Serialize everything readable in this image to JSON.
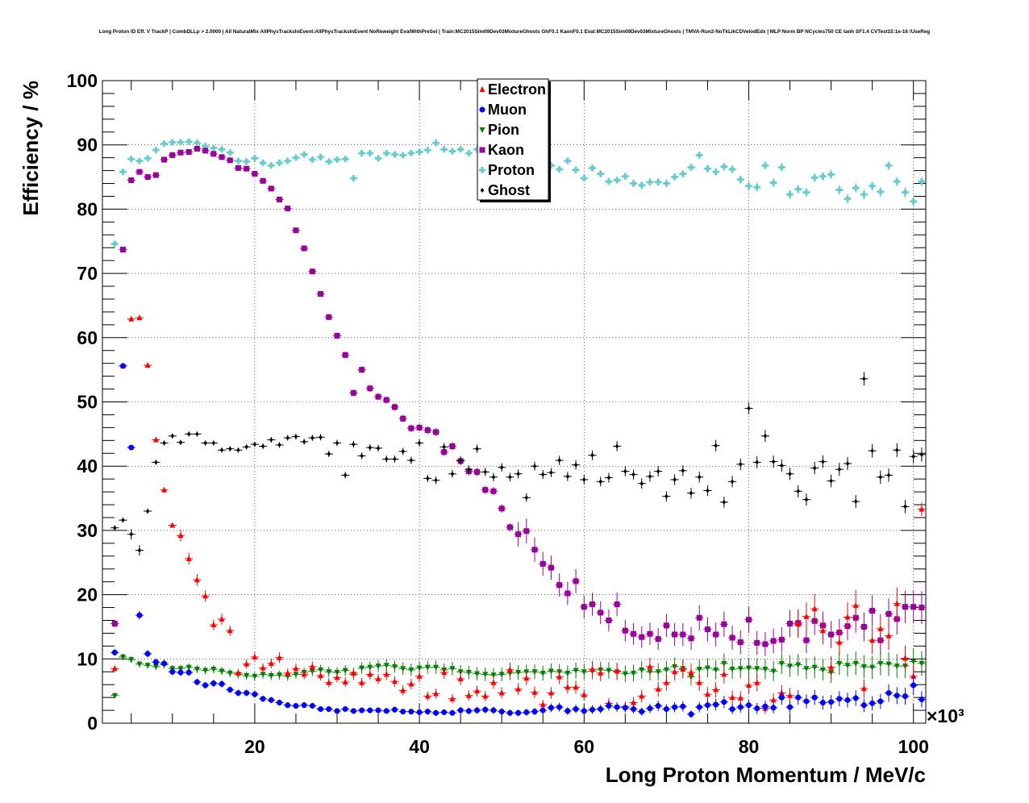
{
  "title": "Long Proton ID Eff. V TrackP | CombDLLp > 2.0000 | All NaturalMix AllPhysTracksInEvent:AllPhysTracksInEvent NoReweight EvalWithPreSel | Train:MC2015Sim09Dev03MixtureGhosts GhF0.1 KaonF0.1 Eval:MC2015Sim09Dev03MixtureGhosts | TMVA-Run2-NoTkLikCDVelodEdx | MLP Norm BP NCycles750 CE tanh SF1.4 CVTest15:1e-16 !UseReg",
  "chart_data": {
    "type": "scatter",
    "title": "Long Proton ID Eff. V TrackP | CombDLLp > 2.0000 | All NaturalMix AllPhysTracksInEvent:AllPhysTracksInEvent NoReweight EvalWithPreSel | Train:MC2015Sim09Dev03MixtureGhosts GhF0.1 KaonF0.1 Eval:MC2015Sim09Dev03MixtureGhosts | TMVA-Run2-NoTkLikCDVelodEdx | MLP Norm BP NCycles750 CE tanh SF1.4 CVTest15:1e-16 !UseReg",
    "xlabel": "Long Proton Momentum / MeV/c",
    "ylabel": "Efficiency / %",
    "x_multiplier": "×10³",
    "xlim": [
      1.5,
      101.5
    ],
    "ylim": [
      0,
      100
    ],
    "x_ticks": [
      20,
      40,
      60,
      80,
      100
    ],
    "y_ticks": [
      0,
      10,
      20,
      30,
      40,
      50,
      60,
      70,
      80,
      90,
      100
    ],
    "grid": true,
    "legend_position": "top-center",
    "x": [
      3,
      4,
      5,
      6,
      7,
      8,
      9,
      10,
      11,
      12,
      13,
      14,
      15,
      16,
      17,
      18,
      19,
      20,
      21,
      22,
      23,
      24,
      25,
      26,
      27,
      28,
      29,
      30,
      31,
      32,
      33,
      34,
      35,
      36,
      37,
      38,
      39,
      40,
      41,
      42,
      43,
      44,
      45,
      46,
      47,
      48,
      49,
      50,
      51,
      52,
      53,
      54,
      55,
      56,
      57,
      58,
      59,
      60,
      61,
      62,
      63,
      64,
      65,
      66,
      67,
      68,
      69,
      70,
      71,
      72,
      73,
      74,
      75,
      76,
      77,
      78,
      79,
      80,
      81,
      82,
      83,
      84,
      85,
      86,
      87,
      88,
      89,
      90,
      91,
      92,
      93,
      94,
      95,
      96,
      97,
      98,
      99,
      100,
      101
    ],
    "series": [
      {
        "name": "Electron",
        "color": "#ff0000",
        "marker": "triangle-up",
        "values": [
          8.5,
          55.6,
          62.9,
          63.1,
          55.7,
          44.1,
          36.3,
          30.8,
          29.2,
          25.6,
          22.3,
          19.8,
          15.3,
          16.2,
          14.4,
          7.8,
          9.2,
          10.3,
          8.6,
          9.3,
          10.2,
          7.8,
          8.5,
          7.6,
          8.8,
          7.4,
          6.3,
          7.1,
          6.4,
          7.8,
          6.3,
          7.6,
          6.9,
          7.6,
          6.5,
          5.1,
          6.1,
          7.3,
          4.2,
          4.6,
          7.9,
          3.8,
          6.9,
          4.3,
          5.0,
          4.2,
          6.3,
          4.7,
          8.3,
          5.3,
          7.0,
          4.8,
          2.9,
          4.7,
          7.2,
          5.6,
          5.6,
          4.4,
          8.4,
          7.8,
          3.1,
          8.1,
          2.6,
          3.2,
          4.2,
          8.8,
          5.3,
          6.3,
          8.0,
          8.4,
          7.9,
          6.3,
          4.5,
          5.2,
          7.6,
          4.0,
          3.9,
          5.9,
          6.3,
          2.3,
          3.6,
          4.7,
          4.3,
          15.4,
          16.6,
          17.8,
          14.4,
          8.7,
          12.6,
          16.5,
          18.3,
          5.4,
          12.9,
          14.7,
          13.6,
          18.6,
          10.1,
          7.3,
          33.3
        ]
      },
      {
        "name": "Muon",
        "color": "#0000ff",
        "marker": "circle",
        "values": [
          11.0,
          55.6,
          42.9,
          16.8,
          10.8,
          9.5,
          9.3,
          8.0,
          7.9,
          7.9,
          6.4,
          5.9,
          6.2,
          6.1,
          5.2,
          4.7,
          4.7,
          4.5,
          3.8,
          3.6,
          3.2,
          2.8,
          2.7,
          2.8,
          2.7,
          2.2,
          2.2,
          1.9,
          2.2,
          1.9,
          2.0,
          2.0,
          2.0,
          1.9,
          2.1,
          1.8,
          1.8,
          1.7,
          1.8,
          1.6,
          1.7,
          1.6,
          2.0,
          1.9,
          2.0,
          2.1,
          2.0,
          1.8,
          1.6,
          1.6,
          1.7,
          1.8,
          2.0,
          2.4,
          2.5,
          1.9,
          2.2,
          1.9,
          2.1,
          2.2,
          2.7,
          2.5,
          2.4,
          2.2,
          1.8,
          2.3,
          2.7,
          2.2,
          2.5,
          2.6,
          1.4,
          2.5,
          2.8,
          2.9,
          3.3,
          2.2,
          2.5,
          2.8,
          2.3,
          2.6,
          2.4,
          4.0,
          2.5,
          4.0,
          3.4,
          4.0,
          3.2,
          3.3,
          3.8,
          3.6,
          3.9,
          2.8,
          3.1,
          3.4,
          4.7,
          4.3,
          4.2,
          5.9,
          3.7
        ]
      },
      {
        "name": "Pion",
        "color": "#008000",
        "marker": "triangle-down",
        "values": [
          4.3,
          10.3,
          9.9,
          9.2,
          9.0,
          8.8,
          9.1,
          8.5,
          8.5,
          8.7,
          8.4,
          8.2,
          8.4,
          8.1,
          7.8,
          7.6,
          7.4,
          7.3,
          7.6,
          7.4,
          7.5,
          7.3,
          7.6,
          7.9,
          8.1,
          8.3,
          8.0,
          7.9,
          8.2,
          7.6,
          8.6,
          8.7,
          8.9,
          9.0,
          8.8,
          8.5,
          8.3,
          8.6,
          8.7,
          8.7,
          8.3,
          8.5,
          8.0,
          7.9,
          7.7,
          7.6,
          7.5,
          7.6,
          7.8,
          7.9,
          8.0,
          8.0,
          7.8,
          8.1,
          8.0,
          7.8,
          8.2,
          8.0,
          8.1,
          8.3,
          8.2,
          8.0,
          7.7,
          7.8,
          8.3,
          8.0,
          8.0,
          8.3,
          8.8,
          8.5,
          7.2,
          8.4,
          8.6,
          8.3,
          9.3,
          8.4,
          8.5,
          8.6,
          8.5,
          8.4,
          8.1,
          9.3,
          8.9,
          9.1,
          8.5,
          8.7,
          8.3,
          7.9,
          9.3,
          9.0,
          9.3,
          8.8,
          8.7,
          9.3,
          9.2,
          8.9,
          8.9,
          9.6,
          9.3
        ]
      },
      {
        "name": "Kaon",
        "color": "#990099",
        "marker": "square",
        "values": [
          15.5,
          73.7,
          84.5,
          85.8,
          85.0,
          85.3,
          87.7,
          88.4,
          88.8,
          88.9,
          89.4,
          89.1,
          88.6,
          88.1,
          87.6,
          86.4,
          86.3,
          85.5,
          84.4,
          83.2,
          81.5,
          80.1,
          76.7,
          73.9,
          70.3,
          66.8,
          63.2,
          60.3,
          57.3,
          51.4,
          55.0,
          52.1,
          50.8,
          50.3,
          49.2,
          47.4,
          45.9,
          46.0,
          45.6,
          45.3,
          42.2,
          43.1,
          40.8,
          39.2,
          39.1,
          36.3,
          36.1,
          33.4,
          30.5,
          29.4,
          29.9,
          27.0,
          24.8,
          24.2,
          21.5,
          20.2,
          22.1,
          18.1,
          18.5,
          17.2,
          16.0,
          18.5,
          14.4,
          13.9,
          13.4,
          13.9,
          13.1,
          15.2,
          13.8,
          13.8,
          13.2,
          16.4,
          14.6,
          13.8,
          15.4,
          13.3,
          12.6,
          16.1,
          12.5,
          12.3,
          12.8,
          13.0,
          15.5,
          15.6,
          12.9,
          15.9,
          15.2,
          13.8,
          14.1,
          15.1,
          16.4,
          15.0,
          17.5,
          12.9,
          17.0,
          16.2,
          18.1,
          18.1,
          18.0
        ]
      },
      {
        "name": "Proton",
        "color": "#66cccc",
        "marker": "cross",
        "values": [
          74.6,
          85.8,
          87.8,
          87.5,
          87.9,
          89.2,
          90.2,
          90.4,
          90.4,
          90.5,
          90.3,
          89.8,
          89.5,
          89.3,
          88.8,
          87.5,
          87.4,
          87.9,
          87.2,
          86.8,
          87.2,
          87.5,
          88.0,
          88.5,
          87.7,
          88.1,
          87.4,
          87.7,
          87.8,
          84.8,
          88.7,
          88.7,
          87.9,
          88.7,
          88.5,
          88.4,
          88.7,
          88.9,
          89.2,
          90.3,
          89.3,
          89.0,
          89.3,
          88.7,
          89.3,
          88.8,
          89.2,
          88.4,
          88.2,
          86.4,
          87.5,
          88.2,
          87.0,
          86.8,
          86.2,
          87.5,
          86.1,
          84.8,
          86.4,
          85.5,
          84.3,
          84.5,
          85.1,
          84.0,
          83.7,
          84.2,
          84.2,
          84.0,
          85.0,
          85.5,
          86.5,
          88.4,
          86.3,
          85.8,
          86.6,
          86.2,
          84.6,
          83.6,
          83.4,
          86.8,
          84.1,
          86.5,
          82.3,
          83.1,
          82.6,
          84.9,
          85.1,
          85.4,
          83.0,
          81.6,
          83.3,
          82.3,
          83.6,
          82.7,
          86.8,
          84.3,
          82.6,
          81.2,
          84.3
        ]
      },
      {
        "name": "Ghost",
        "color": "#000000",
        "marker": "diamond",
        "values": [
          30.4,
          31.6,
          29.4,
          26.9,
          33.0,
          40.6,
          43.6,
          44.7,
          43.7,
          45.0,
          45.0,
          43.6,
          43.6,
          42.5,
          42.7,
          42.5,
          43.0,
          43.4,
          43.1,
          44.1,
          43.3,
          44.4,
          44.6,
          43.8,
          44.4,
          44.5,
          41.9,
          43.6,
          38.6,
          43.4,
          41.6,
          42.9,
          42.8,
          41.1,
          41.1,
          42.3,
          40.9,
          43.6,
          38.1,
          37.8,
          43.0,
          38.8,
          40.9,
          39.5,
          42.7,
          39.1,
          38.3,
          39.8,
          38.3,
          38.8,
          35.1,
          40.0,
          38.7,
          39.0,
          40.9,
          38.4,
          40.2,
          37.9,
          41.7,
          37.6,
          38.2,
          43.1,
          39.2,
          38.7,
          37.3,
          38.4,
          39.2,
          35.3,
          37.9,
          39.3,
          35.8,
          38.3,
          36.2,
          43.2,
          34.4,
          37.6,
          40.3,
          49.0,
          40.6,
          44.7,
          40.7,
          40.1,
          38.8,
          36.1,
          34.8,
          39.7,
          40.7,
          37.7,
          39.5,
          40.4,
          34.5,
          53.6,
          42.4,
          38.3,
          38.6,
          42.5,
          33.7,
          41.5,
          41.8
        ]
      }
    ]
  }
}
